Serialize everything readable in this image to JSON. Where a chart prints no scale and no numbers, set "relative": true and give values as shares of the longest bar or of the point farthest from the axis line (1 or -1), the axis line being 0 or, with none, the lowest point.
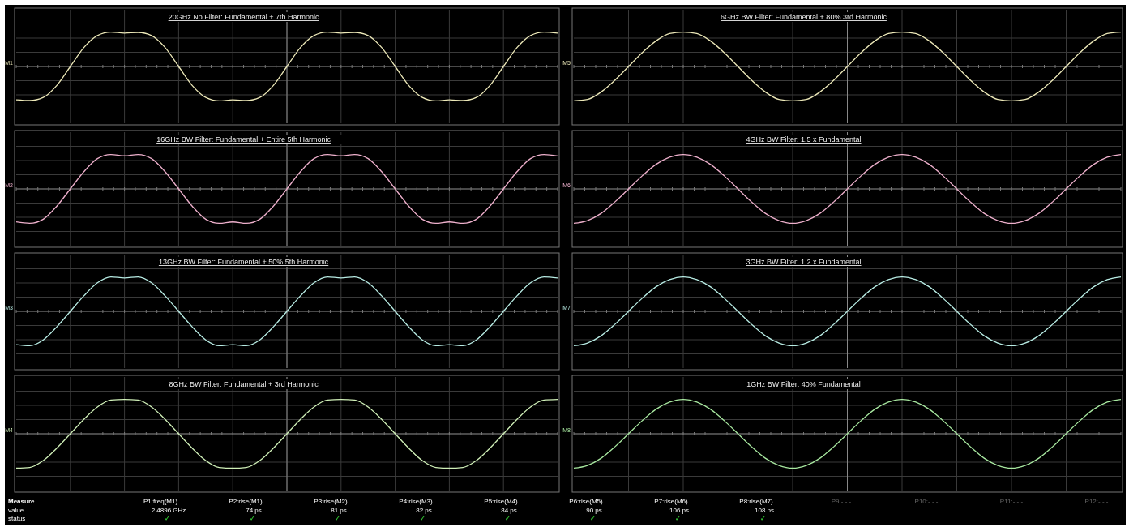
{
  "chart_data": [
    {
      "type": "line",
      "title": "20GHz No Filter: Fundamental + 7th Harmonic",
      "ylabel": "M1",
      "relative": true,
      "grid": true,
      "marker": "none",
      "categories": [
        null,
        null,
        null,
        null,
        null,
        null,
        null,
        null,
        null,
        null,
        null,
        null,
        null,
        null,
        null,
        null,
        null,
        null,
        null,
        null,
        null,
        null,
        null,
        null,
        null,
        null,
        null,
        null,
        null,
        null,
        null,
        null,
        null,
        null,
        null,
        null,
        null,
        null,
        null,
        null,
        null
      ],
      "series": [
        {
          "color": "#ece8b8",
          "values": [
            -0.97,
            -0.99,
            -0.9,
            -0.55,
            0,
            0.55,
            0.9,
            1,
            0.97,
            0.99,
            0.9,
            0.55,
            0,
            -0.55,
            -0.9,
            -1,
            -0.97,
            -0.99,
            -0.9,
            -0.55,
            0,
            0.55,
            0.9,
            1,
            0.97,
            0.99,
            0.9,
            0.55,
            0,
            -0.55,
            -0.9,
            -1,
            -0.97,
            -0.99,
            -0.9,
            -0.55,
            0,
            0.55,
            0.9,
            1,
            0.97
          ]
        }
      ]
    },
    {
      "type": "line",
      "title": "16GHz BW Filter: Fundamental + Entire 5th Harmonic",
      "ylabel": "M2",
      "relative": true,
      "grid": true,
      "marker": "none",
      "categories": [
        null,
        null,
        null,
        null,
        null,
        null,
        null,
        null,
        null,
        null,
        null,
        null,
        null,
        null,
        null,
        null,
        null,
        null,
        null,
        null,
        null,
        null,
        null,
        null,
        null,
        null,
        null,
        null,
        null,
        null,
        null,
        null,
        null,
        null,
        null,
        null,
        null,
        null,
        null,
        null,
        null
      ],
      "series": [
        {
          "color": "#eeb0cc",
          "values": [
            -0.96,
            -1,
            -0.88,
            -0.5,
            0,
            0.5,
            0.88,
            1,
            0.96,
            1,
            0.88,
            0.5,
            0,
            -0.5,
            -0.88,
            -1,
            -0.96,
            -1,
            -0.88,
            -0.5,
            0,
            0.5,
            0.88,
            1,
            0.96,
            1,
            0.88,
            0.5,
            0,
            -0.5,
            -0.88,
            -1,
            -0.96,
            -1,
            -0.88,
            -0.5,
            0,
            0.5,
            0.88,
            1,
            0.96
          ]
        }
      ]
    },
    {
      "type": "line",
      "title": "13GHz BW Filter: Fundamental + 50% 5th Harmonic",
      "ylabel": "M3",
      "relative": true,
      "grid": true,
      "marker": "none",
      "categories": [
        null,
        null,
        null,
        null,
        null,
        null,
        null,
        null,
        null,
        null,
        null,
        null,
        null,
        null,
        null,
        null,
        null,
        null,
        null,
        null,
        null,
        null,
        null,
        null,
        null,
        null,
        null,
        null,
        null,
        null,
        null,
        null,
        null,
        null,
        null,
        null,
        null,
        null,
        null,
        null,
        null
      ],
      "series": [
        {
          "color": "#b8ece4",
          "values": [
            -0.97,
            -1,
            -0.83,
            -0.45,
            0,
            0.45,
            0.83,
            1,
            0.97,
            1,
            0.83,
            0.45,
            0,
            -0.45,
            -0.83,
            -1,
            -0.97,
            -1,
            -0.83,
            -0.45,
            0,
            0.45,
            0.83,
            1,
            0.97,
            1,
            0.83,
            0.45,
            0,
            -0.45,
            -0.83,
            -1,
            -0.97,
            -1,
            -0.83,
            -0.45,
            0,
            0.45,
            0.83,
            1,
            0.97
          ]
        }
      ]
    },
    {
      "type": "line",
      "title": "8GHz BW Filter: Fundamental + 3rd Harmonic",
      "ylabel": "M4",
      "relative": true,
      "grid": true,
      "marker": "none",
      "categories": [
        null,
        null,
        null,
        null,
        null,
        null,
        null,
        null,
        null,
        null,
        null,
        null,
        null,
        null,
        null,
        null,
        null,
        null,
        null,
        null,
        null,
        null,
        null,
        null,
        null,
        null,
        null,
        null,
        null,
        null,
        null,
        null,
        null,
        null,
        null,
        null,
        null,
        null,
        null,
        null,
        null
      ],
      "series": [
        {
          "color": "#d0f0b8",
          "values": [
            -1,
            -0.98,
            -0.78,
            -0.42,
            0,
            0.42,
            0.78,
            0.98,
            1,
            0.98,
            0.78,
            0.42,
            0,
            -0.42,
            -0.78,
            -0.98,
            -1,
            -0.98,
            -0.78,
            -0.42,
            0,
            0.42,
            0.78,
            0.98,
            1,
            0.98,
            0.78,
            0.42,
            0,
            -0.42,
            -0.78,
            -0.98,
            -1,
            -0.98,
            -0.78,
            -0.42,
            0,
            0.42,
            0.78,
            0.98,
            1
          ]
        }
      ]
    },
    {
      "type": "line",
      "title": "6GHz BW Filter: Fundamental + 80% 3rd Harmonic",
      "ylabel": "M5",
      "relative": true,
      "grid": true,
      "marker": "none",
      "categories": [
        null,
        null,
        null,
        null,
        null,
        null,
        null,
        null,
        null,
        null,
        null,
        null,
        null,
        null,
        null,
        null,
        null,
        null,
        null,
        null,
        null,
        null,
        null,
        null,
        null,
        null,
        null,
        null,
        null,
        null,
        null,
        null,
        null,
        null,
        null,
        null,
        null,
        null,
        null,
        null,
        null
      ],
      "series": [
        {
          "color": "#ece8b8",
          "values": [
            -1,
            -0.96,
            -0.74,
            -0.4,
            0,
            0.4,
            0.74,
            0.96,
            1,
            0.96,
            0.74,
            0.4,
            0,
            -0.4,
            -0.74,
            -0.96,
            -1,
            -0.96,
            -0.74,
            -0.4,
            0,
            0.4,
            0.74,
            0.96,
            1,
            0.96,
            0.74,
            0.4,
            0,
            -0.4,
            -0.74,
            -0.96,
            -1,
            -0.96,
            -0.74,
            -0.4,
            0,
            0.4,
            0.74,
            0.96,
            1
          ]
        }
      ]
    },
    {
      "type": "line",
      "title": "4GHz BW Filter: 1.5 x Fundamental",
      "ylabel": "M6",
      "relative": true,
      "grid": true,
      "marker": "none",
      "categories": [
        null,
        null,
        null,
        null,
        null,
        null,
        null,
        null,
        null,
        null,
        null,
        null,
        null,
        null,
        null,
        null,
        null,
        null,
        null,
        null,
        null,
        null,
        null,
        null,
        null,
        null,
        null,
        null,
        null,
        null,
        null,
        null,
        null,
        null,
        null,
        null,
        null,
        null,
        null,
        null,
        null
      ],
      "series": [
        {
          "color": "#eeb0cc",
          "values": [
            -1,
            -0.92,
            -0.71,
            -0.38,
            0,
            0.38,
            0.71,
            0.92,
            1,
            0.92,
            0.71,
            0.38,
            0,
            -0.38,
            -0.71,
            -0.92,
            -1,
            -0.92,
            -0.71,
            -0.38,
            0,
            0.38,
            0.71,
            0.92,
            1,
            0.92,
            0.71,
            0.38,
            0,
            -0.38,
            -0.71,
            -0.92,
            -1,
            -0.92,
            -0.71,
            -0.38,
            0,
            0.38,
            0.71,
            0.92,
            1
          ]
        }
      ]
    },
    {
      "type": "line",
      "title": "3GHz BW Filter: 1.2 x Fundamental",
      "ylabel": "M7",
      "relative": true,
      "grid": true,
      "marker": "none",
      "categories": [
        null,
        null,
        null,
        null,
        null,
        null,
        null,
        null,
        null,
        null,
        null,
        null,
        null,
        null,
        null,
        null,
        null,
        null,
        null,
        null,
        null,
        null,
        null,
        null,
        null,
        null,
        null,
        null,
        null,
        null,
        null,
        null,
        null,
        null,
        null,
        null,
        null,
        null,
        null,
        null,
        null
      ],
      "series": [
        {
          "color": "#b8ece4",
          "values": [
            -1,
            -0.92,
            -0.71,
            -0.38,
            0,
            0.38,
            0.71,
            0.92,
            1,
            0.92,
            0.71,
            0.38,
            0,
            -0.38,
            -0.71,
            -0.92,
            -1,
            -0.92,
            -0.71,
            -0.38,
            0,
            0.38,
            0.71,
            0.92,
            1,
            0.92,
            0.71,
            0.38,
            0,
            -0.38,
            -0.71,
            -0.92,
            -1,
            -0.92,
            -0.71,
            -0.38,
            0,
            0.38,
            0.71,
            0.92,
            1
          ]
        }
      ]
    },
    {
      "type": "line",
      "title": "1GHz BW Filter: 40% Fundamental",
      "ylabel": "M8",
      "relative": true,
      "grid": true,
      "marker": "none",
      "categories": [
        null,
        null,
        null,
        null,
        null,
        null,
        null,
        null,
        null,
        null,
        null,
        null,
        null,
        null,
        null,
        null,
        null,
        null,
        null,
        null,
        null,
        null,
        null,
        null,
        null,
        null,
        null,
        null,
        null,
        null,
        null,
        null,
        null,
        null,
        null,
        null,
        null,
        null,
        null,
        null,
        null
      ],
      "series": [
        {
          "color": "#a8e8a0",
          "values": [
            -1,
            -0.92,
            -0.71,
            -0.38,
            0,
            0.38,
            0.71,
            0.92,
            1,
            0.92,
            0.71,
            0.38,
            0,
            -0.38,
            -0.71,
            -0.92,
            -1,
            -0.92,
            -0.71,
            -0.38,
            0,
            0.38,
            0.71,
            0.92,
            1,
            0.92,
            0.71,
            0.38,
            0,
            -0.38,
            -0.71,
            -0.92,
            -1,
            -0.92,
            -0.71,
            -0.38,
            0,
            0.38,
            0.71,
            0.92,
            1
          ]
        }
      ]
    },
    {
      "type": "other",
      "title": "Measure",
      "categories": [
        "P1:freq(M1)",
        "P2:rise(M1)",
        "P3:rise(M2)",
        "P4:rise(M3)",
        "P5:rise(M4)",
        "P6:rise(M5)",
        "P7:rise(M6)",
        "P8:rise(M7)",
        "P9:- - -",
        "P10:- - -",
        "P11:- - -",
        "P12:- - -"
      ],
      "y_categories": [
        "value",
        "status"
      ],
      "cell_labels": [
        [
          "2.4896 GHz",
          "74 ps",
          "81 ps",
          "82 ps",
          "84 ps",
          "90 ps",
          "106 ps",
          "108 ps",
          null,
          null,
          null,
          null
        ],
        [
          "✓",
          "✓",
          "✓",
          "✓",
          "✓",
          "✓",
          "✓",
          "✓",
          null,
          null,
          null,
          null
        ]
      ]
    }
  ]
}
